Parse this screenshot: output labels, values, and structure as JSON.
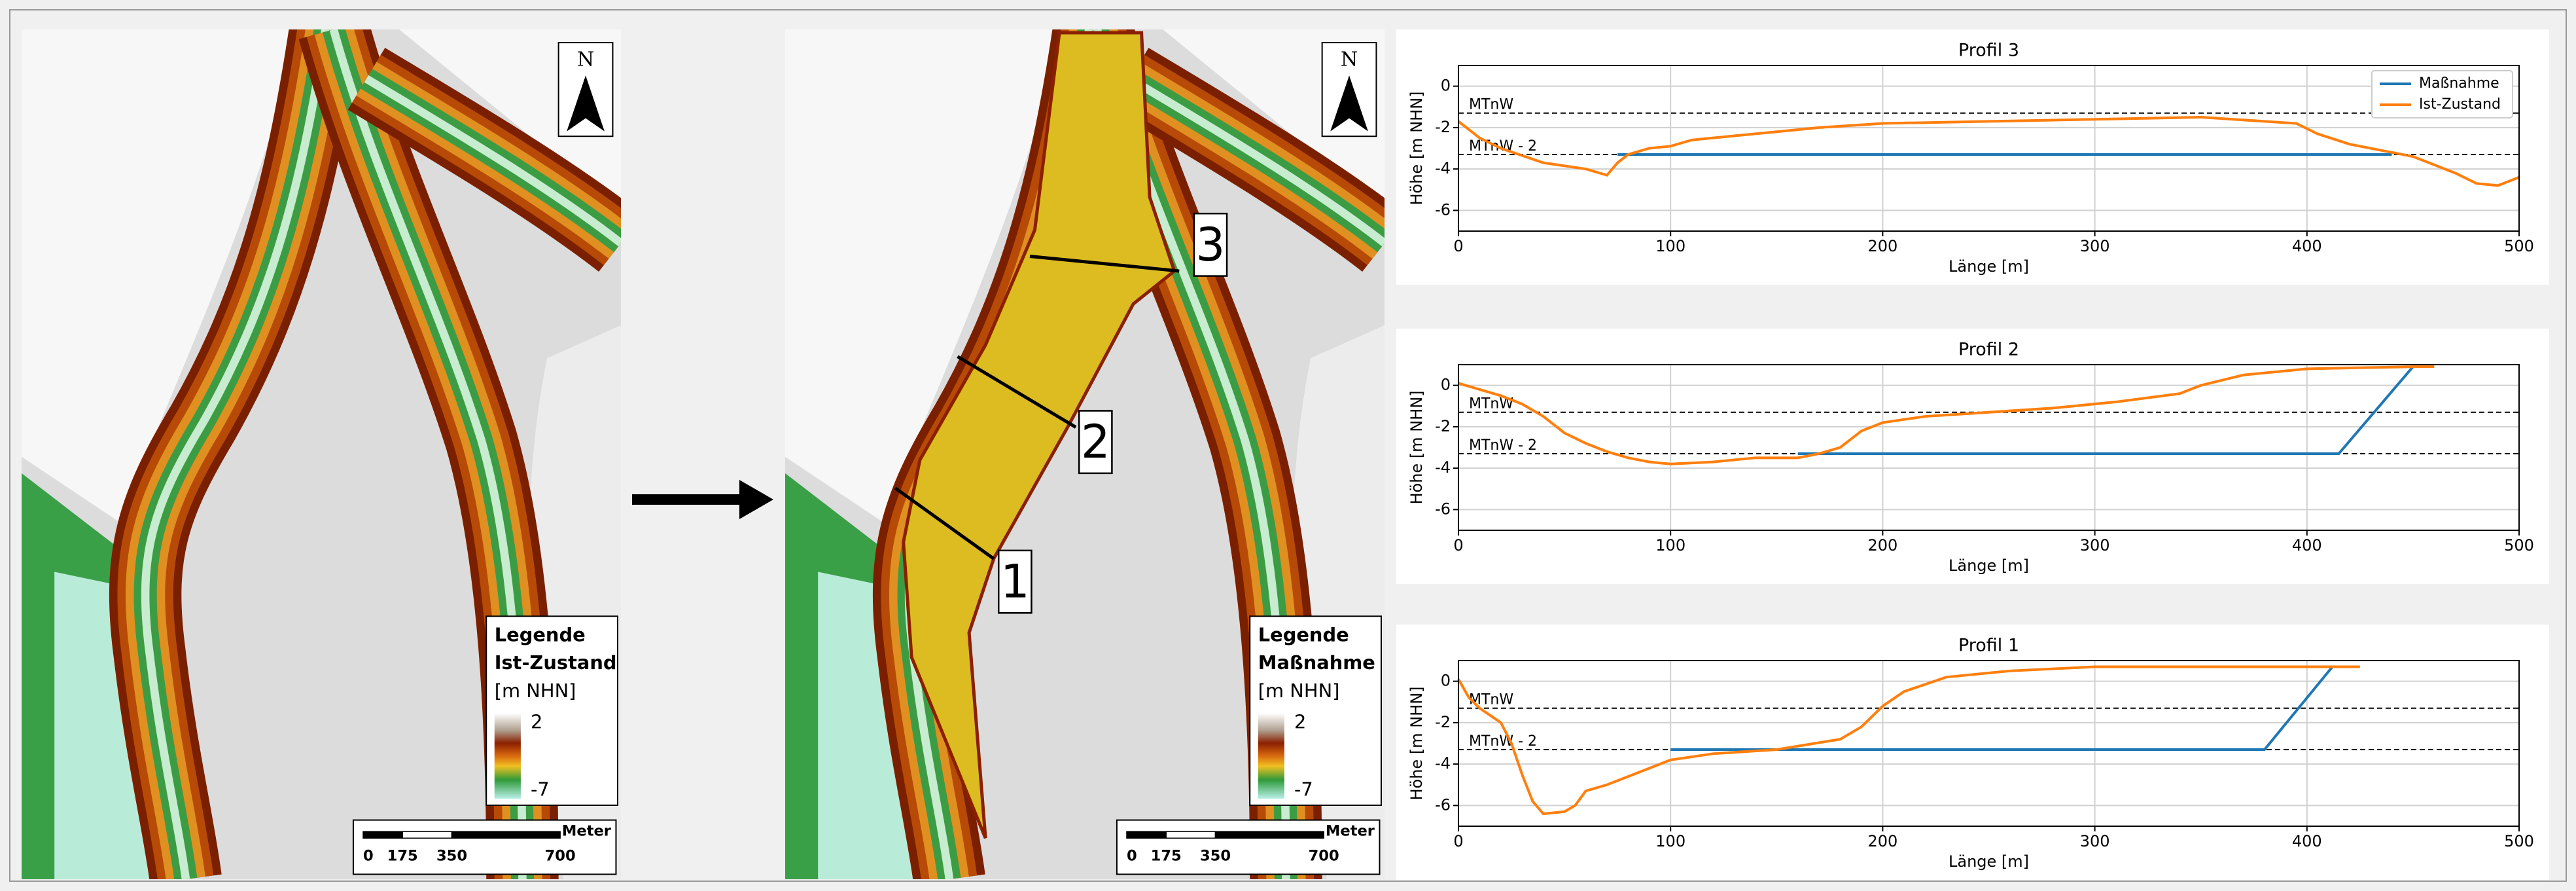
{
  "maps": [
    {
      "north": "N",
      "legend": [
        "Legende",
        "Ist-Zustand",
        "[m NHN]"
      ],
      "legend_max": 2,
      "legend_min": -7,
      "scale_labels": [
        0,
        175,
        350,
        700
      ],
      "scale_unit": "Meter"
    },
    {
      "north": "N",
      "legend": [
        "Legende",
        "Maßnahme",
        "[m NHN]"
      ],
      "legend_max": 2,
      "legend_min": -7,
      "scale_labels": [
        0,
        175,
        350,
        700
      ],
      "scale_unit": "Meter"
    }
  ],
  "profile_labels": [
    1,
    2,
    3
  ],
  "chart_data": [
    {
      "type": "line",
      "title": "Profil 3",
      "xlabel": "Länge [m]",
      "ylabel": "Höhe [m NHN]",
      "xlim": [
        0,
        500
      ],
      "ylim": [
        -7,
        1
      ],
      "xticks": [
        0,
        100,
        200,
        300,
        400,
        500
      ],
      "yticks": [
        -6,
        -4,
        -2,
        0
      ],
      "grid": true,
      "legend": "upper right",
      "hlines": [
        {
          "value": -1.3,
          "label": "MTnW"
        },
        {
          "value": -3.3,
          "label": "MTnW - 2"
        }
      ],
      "series": [
        {
          "name": "Maßnahme",
          "color": "#1f77b4",
          "x": [
            75,
            440
          ],
          "values": [
            -3.3,
            -3.3
          ]
        },
        {
          "name": "Ist-Zustand",
          "color": "#ff7f0e",
          "x": [
            0,
            10,
            20,
            40,
            60,
            70,
            75,
            80,
            90,
            100,
            110,
            130,
            150,
            170,
            200,
            250,
            300,
            350,
            380,
            395,
            405,
            420,
            440,
            450,
            460,
            470,
            480,
            490,
            495,
            500
          ],
          "values": [
            -1.7,
            -2.5,
            -3.0,
            -3.7,
            -4.0,
            -4.3,
            -3.7,
            -3.3,
            -3.0,
            -2.9,
            -2.6,
            -2.4,
            -2.2,
            -2.0,
            -1.8,
            -1.7,
            -1.6,
            -1.5,
            -1.7,
            -1.8,
            -2.3,
            -2.8,
            -3.2,
            -3.4,
            -3.8,
            -4.2,
            -4.7,
            -4.8,
            -4.6,
            -4.4
          ]
        }
      ]
    },
    {
      "type": "line",
      "title": "Profil 2",
      "xlabel": "Länge [m]",
      "ylabel": "Höhe [m NHN]",
      "xlim": [
        0,
        500
      ],
      "ylim": [
        -7,
        1
      ],
      "xticks": [
        0,
        100,
        200,
        300,
        400,
        500
      ],
      "yticks": [
        -6,
        -4,
        -2,
        0
      ],
      "grid": true,
      "hlines": [
        {
          "value": -1.3,
          "label": "MTnW"
        },
        {
          "value": -3.3,
          "label": "MTnW - 2"
        }
      ],
      "series": [
        {
          "name": "Maßnahme",
          "color": "#1f77b4",
          "x": [
            160,
            415,
            450
          ],
          "values": [
            -3.3,
            -3.3,
            0.9
          ]
        },
        {
          "name": "Ist-Zustand",
          "color": "#ff7f0e",
          "x": [
            0,
            10,
            20,
            30,
            40,
            50,
            60,
            70,
            80,
            90,
            100,
            120,
            140,
            160,
            170,
            180,
            190,
            200,
            220,
            250,
            280,
            310,
            340,
            350,
            370,
            400,
            450,
            460
          ],
          "values": [
            0.1,
            -0.2,
            -0.5,
            -0.9,
            -1.5,
            -2.3,
            -2.8,
            -3.2,
            -3.5,
            -3.7,
            -3.8,
            -3.7,
            -3.5,
            -3.5,
            -3.3,
            -3.0,
            -2.2,
            -1.8,
            -1.5,
            -1.3,
            -1.1,
            -0.8,
            -0.4,
            0.0,
            0.5,
            0.8,
            0.9,
            0.9
          ]
        }
      ]
    },
    {
      "type": "line",
      "title": "Profil 1",
      "xlabel": "Länge [m]",
      "ylabel": "Höhe [m NHN]",
      "xlim": [
        0,
        500
      ],
      "ylim": [
        -7,
        1
      ],
      "xticks": [
        0,
        100,
        200,
        300,
        400,
        500
      ],
      "yticks": [
        -6,
        -4,
        -2,
        0
      ],
      "grid": true,
      "hlines": [
        {
          "value": -1.3,
          "label": "MTnW"
        },
        {
          "value": -3.3,
          "label": "MTnW - 2"
        }
      ],
      "series": [
        {
          "name": "Maßnahme",
          "color": "#1f77b4",
          "x": [
            100,
            380,
            412
          ],
          "values": [
            -3.3,
            -3.3,
            0.7
          ]
        },
        {
          "name": "Ist-Zustand",
          "color": "#ff7f0e",
          "x": [
            0,
            5,
            10,
            20,
            25,
            30,
            35,
            40,
            50,
            55,
            60,
            70,
            80,
            90,
            100,
            120,
            150,
            180,
            190,
            200,
            210,
            230,
            260,
            300,
            350,
            400,
            425
          ],
          "values": [
            0.1,
            -0.8,
            -1.3,
            -2.0,
            -3.0,
            -4.5,
            -5.8,
            -6.4,
            -6.3,
            -6.0,
            -5.3,
            -5.0,
            -4.6,
            -4.2,
            -3.8,
            -3.5,
            -3.3,
            -2.8,
            -2.2,
            -1.2,
            -0.5,
            0.2,
            0.5,
            0.7,
            0.7,
            0.7,
            0.7
          ]
        }
      ]
    }
  ]
}
